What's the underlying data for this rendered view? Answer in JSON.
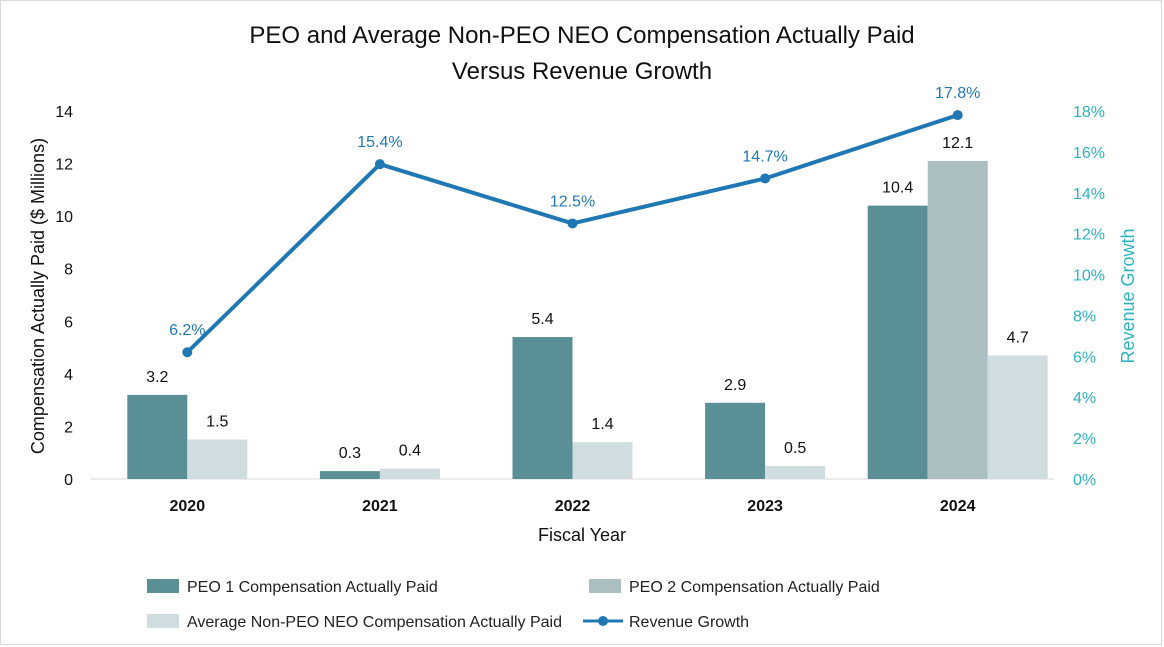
{
  "chart_data": {
    "type": "bar",
    "title_lines": [
      "PEO and Average Non-PEO NEO Compensation Actually Paid",
      "Versus Revenue Growth"
    ],
    "xlabel": "Fiscal Year",
    "ylabel": "Compensation Actually Paid ($ Millions)",
    "y2label": "Revenue Growth",
    "categories": [
      "2020",
      "2021",
      "2022",
      "2023",
      "2024"
    ],
    "ylim": [
      0,
      14
    ],
    "yticks": [
      0,
      2,
      4,
      6,
      8,
      10,
      12,
      14
    ],
    "y2lim": [
      0,
      18
    ],
    "y2ticks": [
      "0%",
      "2%",
      "4%",
      "6%",
      "8%",
      "10%",
      "12%",
      "14%",
      "16%",
      "18%"
    ],
    "bar_series": [
      {
        "name": "PEO 1 Compensation Actually Paid",
        "color": "#5a8f95",
        "values": [
          3.2,
          0.3,
          5.4,
          2.9,
          10.4
        ],
        "labels": [
          "3.2",
          "0.3",
          "5.4",
          "2.9",
          "10.4"
        ]
      },
      {
        "name": "PEO 2 Compensation Actually Paid",
        "color": "#abbfc2",
        "values": [
          null,
          null,
          null,
          null,
          12.1
        ],
        "labels": [
          "",
          "",
          "",
          "",
          "12.1"
        ]
      },
      {
        "name": "Average Non-PEO NEO Compensation Actually Paid",
        "color": "#d0dde0",
        "values": [
          1.5,
          0.4,
          1.4,
          0.5,
          4.7
        ],
        "labels": [
          "1.5",
          "0.4",
          "1.4",
          "0.5",
          "4.7"
        ]
      }
    ],
    "line_series": {
      "name": "Revenue Growth",
      "color": "#1f78b4",
      "values": [
        6.2,
        15.4,
        12.5,
        14.7,
        17.8
      ],
      "labels": [
        "6.2%",
        "15.4%",
        "12.5%",
        "14.7%",
        "17.8%"
      ]
    },
    "legend": [
      {
        "label": "PEO 1 Compensation Actually Paid",
        "kind": "bar",
        "color": "#5a8f95"
      },
      {
        "label": "PEO 2 Compensation Actually Paid",
        "kind": "bar",
        "color": "#abbfc2"
      },
      {
        "label": "Average Non-PEO NEO Compensation Actually Paid",
        "kind": "bar",
        "color": "#d0dde0"
      },
      {
        "label": "Revenue Growth",
        "kind": "line",
        "color": "#1f78b4"
      }
    ],
    "legend_position": "bottom"
  }
}
